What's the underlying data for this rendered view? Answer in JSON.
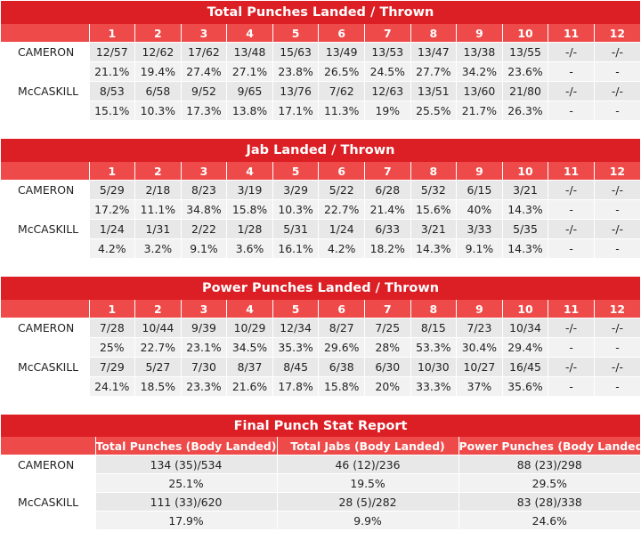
{
  "tables": [
    {
      "title": "Total Punches Landed / Thrown",
      "rounds": [
        "1",
        "2",
        "3",
        "4",
        "5",
        "6",
        "7",
        "8",
        "9",
        "10",
        "11",
        "12"
      ],
      "fighters": [
        {
          "name": "CAMERON",
          "landed_thrown": [
            "12/57",
            "12/62",
            "17/62",
            "13/48",
            "15/63",
            "13/49",
            "13/53",
            "13/47",
            "13/38",
            "13/55",
            "-/-",
            "-/-"
          ],
          "pct": [
            "21.1%",
            "19.4%",
            "27.4%",
            "27.1%",
            "23.8%",
            "26.5%",
            "24.5%",
            "27.7%",
            "34.2%",
            "23.6%",
            "-",
            "-"
          ]
        },
        {
          "name": "McCASKILL",
          "landed_thrown": [
            "8/53",
            "6/58",
            "9/52",
            "9/65",
            "13/76",
            "7/62",
            "12/63",
            "13/51",
            "13/60",
            "21/80",
            "-/-",
            "-/-"
          ],
          "pct": [
            "15.1%",
            "10.3%",
            "17.3%",
            "13.8%",
            "17.1%",
            "11.3%",
            "19%",
            "25.5%",
            "21.7%",
            "26.3%",
            "-",
            "-"
          ]
        }
      ]
    },
    {
      "title": "Jab Landed / Thrown",
      "rounds": [
        "1",
        "2",
        "3",
        "4",
        "5",
        "6",
        "7",
        "8",
        "9",
        "10",
        "11",
        "12"
      ],
      "fighters": [
        {
          "name": "CAMERON",
          "landed_thrown": [
            "5/29",
            "2/18",
            "8/23",
            "3/19",
            "3/29",
            "5/22",
            "6/28",
            "5/32",
            "6/15",
            "3/21",
            "-/-",
            "-/-"
          ],
          "pct": [
            "17.2%",
            "11.1%",
            "34.8%",
            "15.8%",
            "10.3%",
            "22.7%",
            "21.4%",
            "15.6%",
            "40%",
            "14.3%",
            "-",
            "-"
          ]
        },
        {
          "name": "McCASKILL",
          "landed_thrown": [
            "1/24",
            "1/31",
            "2/22",
            "1/28",
            "5/31",
            "1/24",
            "6/33",
            "3/21",
            "3/33",
            "5/35",
            "-/-",
            "-/-"
          ],
          "pct": [
            "4.2%",
            "3.2%",
            "9.1%",
            "3.6%",
            "16.1%",
            "4.2%",
            "18.2%",
            "14.3%",
            "9.1%",
            "14.3%",
            "-",
            "-"
          ]
        }
      ]
    },
    {
      "title": "Power Punches Landed / Thrown",
      "rounds": [
        "1",
        "2",
        "3",
        "4",
        "5",
        "6",
        "7",
        "8",
        "9",
        "10",
        "11",
        "12"
      ],
      "fighters": [
        {
          "name": "CAMERON",
          "landed_thrown": [
            "7/28",
            "10/44",
            "9/39",
            "10/29",
            "12/34",
            "8/27",
            "7/25",
            "8/15",
            "7/23",
            "10/34",
            "-/-",
            "-/-"
          ],
          "pct": [
            "25%",
            "22.7%",
            "23.1%",
            "34.5%",
            "35.3%",
            "29.6%",
            "28%",
            "53.3%",
            "30.4%",
            "29.4%",
            "-",
            "-"
          ]
        },
        {
          "name": "McCASKILL",
          "landed_thrown": [
            "7/29",
            "5/27",
            "7/30",
            "8/37",
            "8/45",
            "6/38",
            "6/30",
            "10/30",
            "10/27",
            "16/45",
            "-/-",
            "-/-"
          ],
          "pct": [
            "24.1%",
            "18.5%",
            "23.3%",
            "21.6%",
            "17.8%",
            "15.8%",
            "20%",
            "33.3%",
            "37%",
            "35.6%",
            "-",
            "-"
          ]
        }
      ]
    }
  ],
  "final": {
    "title": "Final Punch Stat Report",
    "columns": [
      "Total Punches (Body Landed)",
      "Total Jabs (Body Landed)",
      "Power Punches (Body Landed)"
    ],
    "fighters": [
      {
        "name": "CAMERON",
        "values": [
          "134 (35)/534",
          "46 (12)/236",
          "88 (23)/298"
        ],
        "pct": [
          "25.1%",
          "19.5%",
          "29.5%"
        ]
      },
      {
        "name": "McCASKILL",
        "values": [
          "111 (33)/620",
          "28 (5)/282",
          "83 (28)/338"
        ],
        "pct": [
          "17.9%",
          "9.9%",
          "24.6%"
        ]
      }
    ]
  },
  "colors": {
    "title_bg": "#dc1e25",
    "header_bg": "#ee4a4a",
    "cell_bg": "#e8e8e8"
  }
}
